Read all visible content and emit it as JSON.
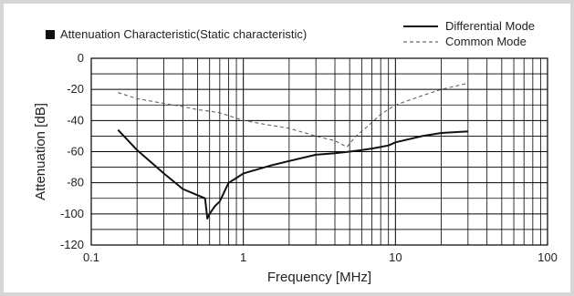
{
  "legend": {
    "chart_title": "Attenuation Characteristic(Static characteristic)",
    "differential_label": "Differential Mode",
    "common_label": "Common Mode"
  },
  "chart_data": {
    "type": "line",
    "title": "Attenuation Characteristic(Static characteristic)",
    "xlabel": "Frequency [MHz]",
    "ylabel": "Attenuation [dB]",
    "x_scale": "log",
    "xlim": [
      0.1,
      100
    ],
    "ylim": [
      -120,
      0
    ],
    "x_ticks": [
      "0.1",
      "1",
      "10",
      "100"
    ],
    "x_tick_values": [
      0.1,
      1,
      10,
      100
    ],
    "y_ticks": [
      "0",
      "-20",
      "-40",
      "-60",
      "-80",
      "-100",
      "-120"
    ],
    "y_tick_values": [
      0,
      -20,
      -40,
      -60,
      -80,
      -100,
      -120
    ],
    "grid": true,
    "series": [
      {
        "name": "Differential Mode",
        "style": "solid",
        "color": "#111111",
        "x": [
          0.15,
          0.2,
          0.3,
          0.4,
          0.5,
          0.56,
          0.58,
          0.6,
          0.65,
          0.7,
          0.8,
          0.9,
          1.0,
          1.5,
          2.0,
          3.0,
          4.0,
          5.0,
          6.0,
          7.0,
          8.0,
          9.0,
          10.0,
          15.0,
          20.0,
          30.0
        ],
        "y": [
          -46,
          -59,
          -74,
          -84,
          -88,
          -90,
          -103,
          -100,
          -95,
          -92,
          -80,
          -77,
          -74,
          -69,
          -66,
          -62,
          -61,
          -60,
          -59,
          -58,
          -57,
          -56,
          -54,
          -50,
          -48,
          -47
        ]
      },
      {
        "name": "Common Mode",
        "style": "dashed",
        "color": "#555555",
        "x": [
          0.15,
          0.2,
          0.3,
          0.4,
          0.5,
          0.6,
          0.7,
          1.0,
          1.5,
          2.0,
          3.0,
          4.0,
          4.8,
          5.5,
          6.5,
          8.0,
          10.0,
          15.0,
          20.0,
          30.0
        ],
        "y": [
          -22,
          -26,
          -29,
          -31,
          -33,
          -34,
          -35,
          -40,
          -43,
          -45,
          -50,
          -53,
          -57,
          -50,
          -44,
          -36,
          -30,
          -24,
          -20,
          -16
        ]
      }
    ]
  }
}
